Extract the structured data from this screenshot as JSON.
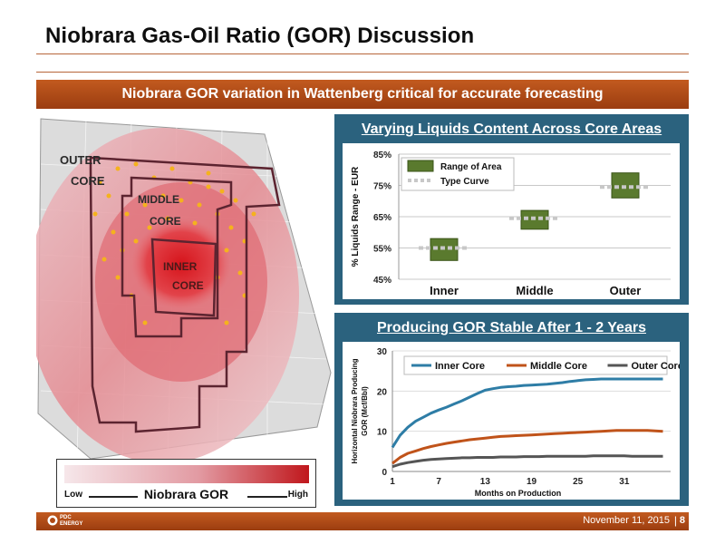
{
  "slide": {
    "title": "Niobrara Gas-Oil Ratio (GOR) Discussion",
    "banner": "Niobrara GOR variation in Wattenberg critical for accurate forecasting",
    "footer_date": "November 11, 2015",
    "footer_sep": "|",
    "page_number": "8",
    "logo_text_1": "PDC",
    "logo_text_2": "ENERGY",
    "colors": {
      "accent": "#b04a16",
      "panel": "#2b627e",
      "bar_green": "#5a7a2e"
    }
  },
  "map": {
    "labels": {
      "outer": [
        "OUTER",
        "CORE"
      ],
      "middle": [
        "MIDDLE",
        "CORE"
      ],
      "inner": [
        "INNER",
        "CORE"
      ]
    },
    "legend": {
      "title": "Niobrara GOR",
      "low": "Low",
      "high": "High"
    }
  },
  "chart_data": [
    {
      "type": "bar",
      "title": "Varying Liquids Content Across Core Areas",
      "ylabel": "% Liquids Range - EUR",
      "categories": [
        "Inner",
        "Middle",
        "Outer"
      ],
      "ylim": [
        45,
        85
      ],
      "yticks": [
        "45%",
        "55%",
        "65%",
        "75%",
        "85%"
      ],
      "yticks_values": [
        45,
        55,
        65,
        75,
        85
      ],
      "series": [
        {
          "name": "Range of Area",
          "low": [
            51,
            61,
            71
          ],
          "high": [
            58,
            67,
            79
          ]
        },
        {
          "name": "Type Curve",
          "values": [
            55,
            64.5,
            74.5
          ]
        }
      ],
      "legend_position": "top-left",
      "grid": true
    },
    {
      "type": "line",
      "title": "Producing GOR Stable After 1 - 2 Years",
      "ylabel": "Horizontal Niobrara Producing GOR (Mcf/Bbl)",
      "xlabel": "Months on Production",
      "x_ticks": [
        "1",
        "7",
        "13",
        "19",
        "25",
        "31"
      ],
      "x_ticks_values": [
        1,
        7,
        13,
        19,
        25,
        31
      ],
      "y_ticks": [
        "0",
        "10",
        "20",
        "30"
      ],
      "y_ticks_values": [
        0,
        10,
        20,
        30
      ],
      "xlim": [
        1,
        37
      ],
      "ylim": [
        0,
        30
      ],
      "legend_position": "top",
      "series": [
        {
          "name": "Inner Core",
          "color": "#2e7da6",
          "x": [
            1,
            2,
            3,
            4,
            5,
            6,
            7,
            8,
            9,
            10,
            11,
            12,
            13,
            14,
            15,
            16,
            17,
            18,
            19,
            20,
            21,
            22,
            23,
            24,
            25,
            26,
            27,
            28,
            29,
            30,
            31,
            32,
            33,
            34,
            35,
            36
          ],
          "values": [
            6,
            9,
            11,
            12.5,
            13.5,
            14.5,
            15.3,
            16,
            16.8,
            17.6,
            18.5,
            19.4,
            20.2,
            20.6,
            20.9,
            21.1,
            21.2,
            21.4,
            21.5,
            21.6,
            21.7,
            21.9,
            22.1,
            22.4,
            22.6,
            22.8,
            22.9,
            23,
            23,
            23,
            23,
            23,
            23,
            23,
            23,
            23
          ]
        },
        {
          "name": "Middle Core",
          "color": "#c0531a",
          "x": [
            1,
            2,
            3,
            4,
            5,
            6,
            7,
            8,
            9,
            10,
            11,
            12,
            13,
            14,
            15,
            16,
            17,
            18,
            19,
            20,
            21,
            22,
            23,
            24,
            25,
            26,
            27,
            28,
            29,
            30,
            31,
            32,
            33,
            34,
            35,
            36
          ],
          "values": [
            2,
            3.5,
            4.5,
            5.1,
            5.7,
            6.2,
            6.6,
            7,
            7.3,
            7.6,
            7.9,
            8.1,
            8.3,
            8.5,
            8.7,
            8.8,
            8.9,
            9,
            9.1,
            9.2,
            9.3,
            9.4,
            9.5,
            9.6,
            9.7,
            9.8,
            9.9,
            10,
            10.1,
            10.2,
            10.2,
            10.2,
            10.2,
            10.2,
            10.1,
            10
          ]
        },
        {
          "name": "Outer Core",
          "color": "#555555",
          "x": [
            1,
            2,
            3,
            4,
            5,
            6,
            7,
            8,
            9,
            10,
            11,
            12,
            13,
            14,
            15,
            16,
            17,
            18,
            19,
            20,
            21,
            22,
            23,
            24,
            25,
            26,
            27,
            28,
            29,
            30,
            31,
            32,
            33,
            34,
            35,
            36
          ],
          "values": [
            1.2,
            1.8,
            2.2,
            2.5,
            2.8,
            3,
            3.1,
            3.2,
            3.3,
            3.4,
            3.4,
            3.5,
            3.5,
            3.5,
            3.6,
            3.6,
            3.6,
            3.7,
            3.7,
            3.7,
            3.8,
            3.8,
            3.8,
            3.8,
            3.8,
            3.8,
            3.9,
            3.9,
            3.9,
            3.9,
            3.9,
            3.8,
            3.8,
            3.8,
            3.8,
            3.8
          ]
        }
      ]
    }
  ]
}
